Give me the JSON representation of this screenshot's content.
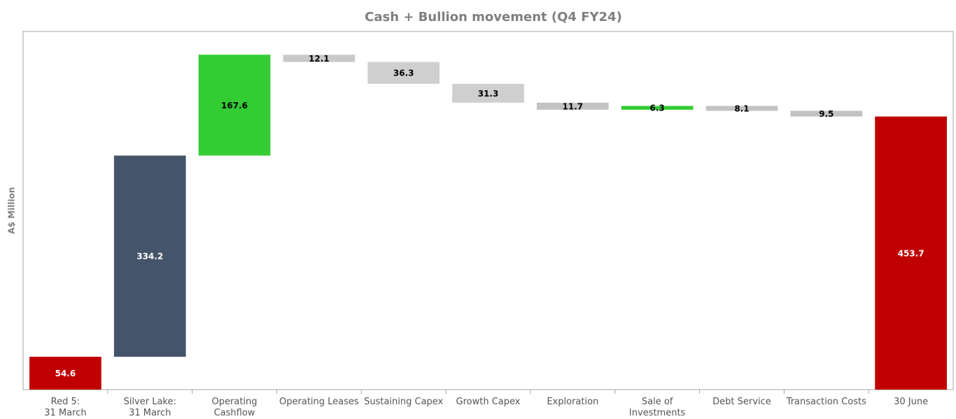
{
  "chart_data": {
    "type": "waterfall",
    "title": "Cash + Bullion movement  (Q4 FY24)",
    "y_label": "A$ Million",
    "categories": [
      "Red 5:\n31 March",
      "Silver Lake:\n31 March",
      "Operating\nCashflow",
      "Operating Leases",
      "Sustaining Capex",
      "Growth Capex",
      "Exploration",
      "Sale of\nInvestments",
      "Debt Service",
      "Transaction Costs",
      "30 June"
    ],
    "values": [
      54.6,
      334.2,
      167.6,
      12.1,
      36.3,
      31.3,
      11.7,
      6.3,
      8.1,
      9.5,
      453.7
    ],
    "kinds": [
      "increase",
      "increase",
      "increase",
      "decrease",
      "decrease",
      "decrease",
      "decrease",
      "increase",
      "decrease",
      "decrease",
      "total"
    ],
    "colors": [
      "#c00000",
      "#44546a",
      "#33cc33",
      "#c9c9c9",
      "#d0cfcf",
      "#d0cfcf",
      "#c3c3c3",
      "#33cc33",
      "#c3c3c3",
      "#c3c3c3",
      "#c00000"
    ],
    "label_colors": [
      "#ffffff",
      "#ffffff",
      "#000000",
      "#000000",
      "#000000",
      "#000000",
      "#000000",
      "#000000",
      "#000000",
      "#000000",
      "#ffffff"
    ],
    "ylim": [
      0,
      595
    ]
  }
}
